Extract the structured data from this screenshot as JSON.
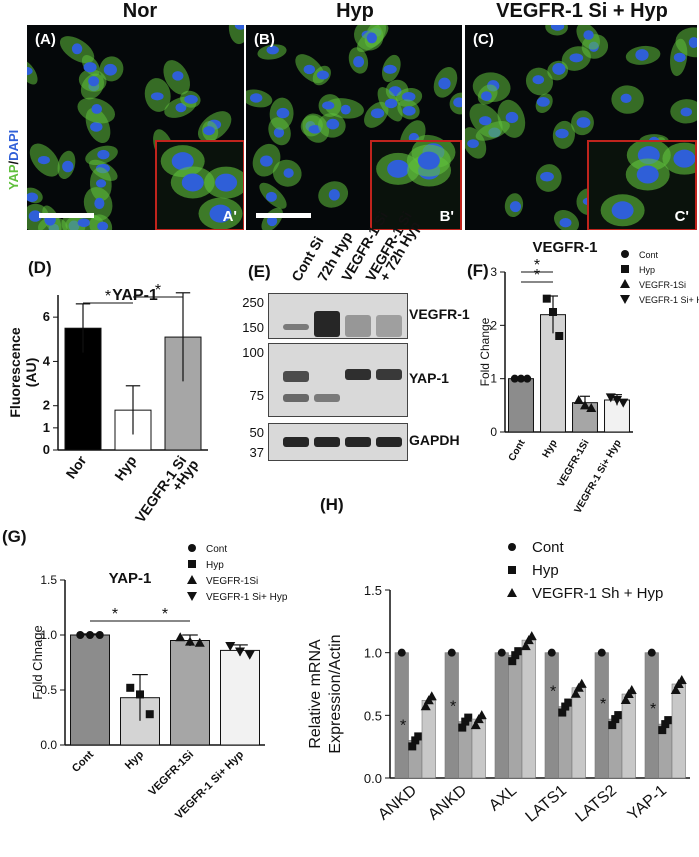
{
  "panel_a": {
    "title": "Nor",
    "label": "(A)",
    "inset_label": "A'"
  },
  "panel_b": {
    "title": "Hyp",
    "label": "(B)",
    "inset_label": "B'"
  },
  "panel_c": {
    "title": "VEGFR-1 Si + Hyp",
    "label": "(C)",
    "inset_label": "C'"
  },
  "stain_label": {
    "yap": "YAP",
    "sep": "/",
    "dapi": "DAPI"
  },
  "colors": {
    "yap": "#5fbf3c",
    "dapi": "#2f5fd8",
    "inset_border": "#c0241d"
  },
  "panel_e": {
    "label": "(E)",
    "lanes": [
      "Cont Si",
      "72h Hyp",
      "VEGFR-1 Si",
      "VEGFR-1 Si\n+ 72h Hyp"
    ],
    "blots": [
      {
        "name": "VEGFR-1",
        "markers": [
          "250",
          "150"
        ]
      },
      {
        "name": "YAP-1",
        "markers": [
          "100",
          "75"
        ]
      },
      {
        "name": "GAPDH",
        "markers": [
          "50",
          "37"
        ]
      }
    ]
  },
  "chart_data": [
    {
      "panel": "(D)",
      "type": "bar",
      "title": "YAP-1",
      "ylabel": "Fluorescence\n(AU)",
      "ylim": [
        0,
        7
      ],
      "yticks": [
        "0",
        "1",
        "2",
        "4",
        "6"
      ],
      "categories": [
        "Nor",
        "Hyp",
        "VEGFR-1 Si\n+Hyp"
      ],
      "values": [
        5.5,
        1.8,
        5.1
      ],
      "errors": [
        1.1,
        1.1,
        2.0
      ],
      "colors": [
        "#000000",
        "#ffffff",
        "#a6a6a6"
      ],
      "significance": [
        "*",
        "*"
      ]
    },
    {
      "panel": "(F)",
      "type": "bar",
      "title": "VEGFR-1",
      "ylabel": "Fold Change",
      "ylim": [
        0,
        3
      ],
      "yticks": [
        "0",
        "1",
        "2",
        "3"
      ],
      "categories": [
        "Cont",
        "Hyp",
        "VEGFR-1Si",
        "VEGFR-1 Si+ Hyp"
      ],
      "values": [
        1.0,
        2.2,
        0.55,
        0.6
      ],
      "errors": [
        0.02,
        0.35,
        0.12,
        0.1
      ],
      "points": [
        [
          1.0,
          1.0,
          1.0
        ],
        [
          2.5,
          2.25,
          1.8
        ],
        [
          0.6,
          0.5,
          0.45
        ],
        [
          0.65,
          0.6,
          0.55
        ]
      ],
      "legend": [
        "Cont",
        "Hyp",
        "VEGFR-1Si",
        "VEGFR-1 Si+ Hyp"
      ],
      "significance": [
        "*",
        "*"
      ]
    },
    {
      "panel": "(G)",
      "type": "bar",
      "title": "YAP-1",
      "ylabel": "Fold Chnage",
      "ylim": [
        0,
        1.5
      ],
      "yticks": [
        "0.0",
        "0.5",
        "1.0",
        "1.5"
      ],
      "categories": [
        "Cont",
        "Hyp",
        "VEGFR-1Si",
        "VEGFR-1 Si+ Hyp"
      ],
      "values": [
        1.0,
        0.43,
        0.95,
        0.86
      ],
      "errors": [
        0.01,
        0.21,
        0.05,
        0.05
      ],
      "points": [
        [
          1.0,
          1.0,
          1.0
        ],
        [
          0.52,
          0.46,
          0.28
        ],
        [
          0.98,
          0.94,
          0.93
        ],
        [
          0.9,
          0.85,
          0.82
        ]
      ],
      "legend": [
        "Cont",
        "Hyp",
        "VEGFR-1Si",
        "VEGFR-1 Si+ Hyp"
      ],
      "significance": [
        "*",
        "*"
      ]
    },
    {
      "panel": "(H)",
      "type": "bar",
      "title": "",
      "ylabel": "Relative mRNA\nExpression/Actin",
      "ylim": [
        0,
        1.5
      ],
      "yticks": [
        "0.0",
        "0.5",
        "1.0",
        "1.5"
      ],
      "categories": [
        "ANKD",
        "ANKD",
        "AXL",
        "LATS1",
        "LATS2",
        "YAP-1"
      ],
      "series": [
        {
          "name": "Cont",
          "values": [
            1.0,
            1.0,
            1.0,
            1.0,
            1.0,
            1.0
          ]
        },
        {
          "name": "Hyp",
          "values": [
            0.3,
            0.45,
            0.98,
            0.57,
            0.47,
            0.43
          ]
        },
        {
          "name": "VEGFR-1 Sh + Hyp",
          "values": [
            0.62,
            0.47,
            1.1,
            0.72,
            0.67,
            0.75
          ]
        }
      ],
      "significance": [
        "*",
        "*",
        "",
        "*",
        "*",
        "*"
      ],
      "legend": [
        "Cont",
        "Hyp",
        "VEGFR-1 Sh + Hyp"
      ]
    }
  ],
  "panel_labels": {
    "d": "(D)",
    "f": "(F)",
    "g": "(G)",
    "h": "(H)"
  }
}
